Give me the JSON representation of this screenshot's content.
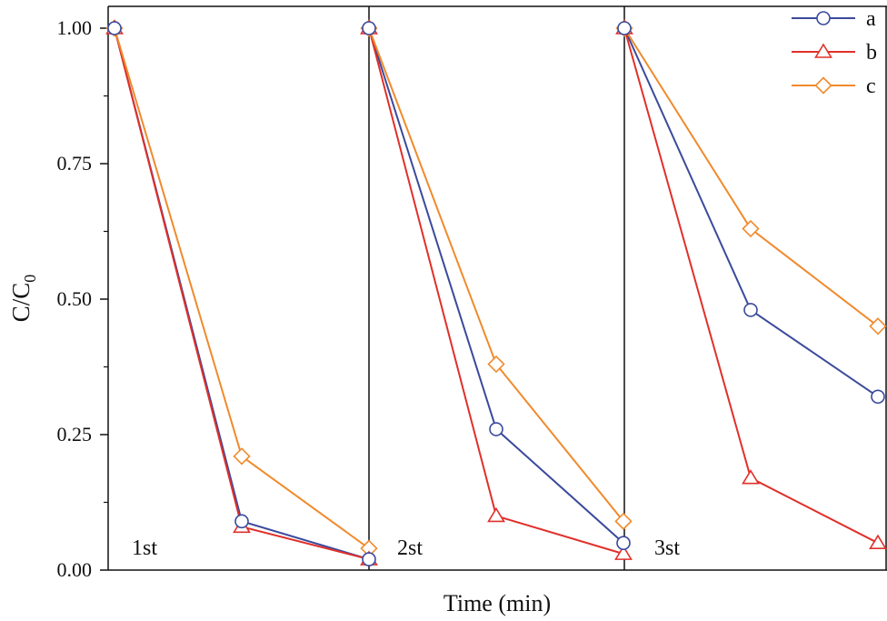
{
  "chart_data": {
    "type": "line",
    "title": "",
    "xlabel": "Time (min)",
    "ylabel_main": "C/C",
    "ylabel_sub": "0",
    "ylim": [
      0,
      1.0
    ],
    "yticks": [
      "0.00",
      "0.25",
      "0.50",
      "0.75",
      "1.00"
    ],
    "grid": false,
    "legend_position": "top-right",
    "panels": [
      {
        "label": "1st",
        "series": [
          {
            "name": "a",
            "values": [
              1.0,
              0.09,
              0.02
            ]
          },
          {
            "name": "b",
            "values": [
              1.0,
              0.08,
              0.02
            ]
          },
          {
            "name": "c",
            "values": [
              1.0,
              0.21,
              0.04
            ]
          }
        ]
      },
      {
        "label": "2st",
        "series": [
          {
            "name": "a",
            "values": [
              1.0,
              0.26,
              0.05
            ]
          },
          {
            "name": "b",
            "values": [
              1.0,
              0.1,
              0.03
            ]
          },
          {
            "name": "c",
            "values": [
              1.0,
              0.38,
              0.09
            ]
          }
        ]
      },
      {
        "label": "3st",
        "series": [
          {
            "name": "a",
            "values": [
              1.0,
              0.48,
              0.32
            ]
          },
          {
            "name": "b",
            "values": [
              1.0,
              0.17,
              0.05
            ]
          },
          {
            "name": "c",
            "values": [
              1.0,
              0.63,
              0.45
            ]
          }
        ]
      }
    ],
    "series_styles": [
      {
        "name": "a",
        "color": "#3a4a9c",
        "marker": "circle"
      },
      {
        "name": "b",
        "color": "#e0302a",
        "marker": "triangle"
      },
      {
        "name": "c",
        "color": "#f08a2c",
        "marker": "diamond"
      }
    ]
  }
}
